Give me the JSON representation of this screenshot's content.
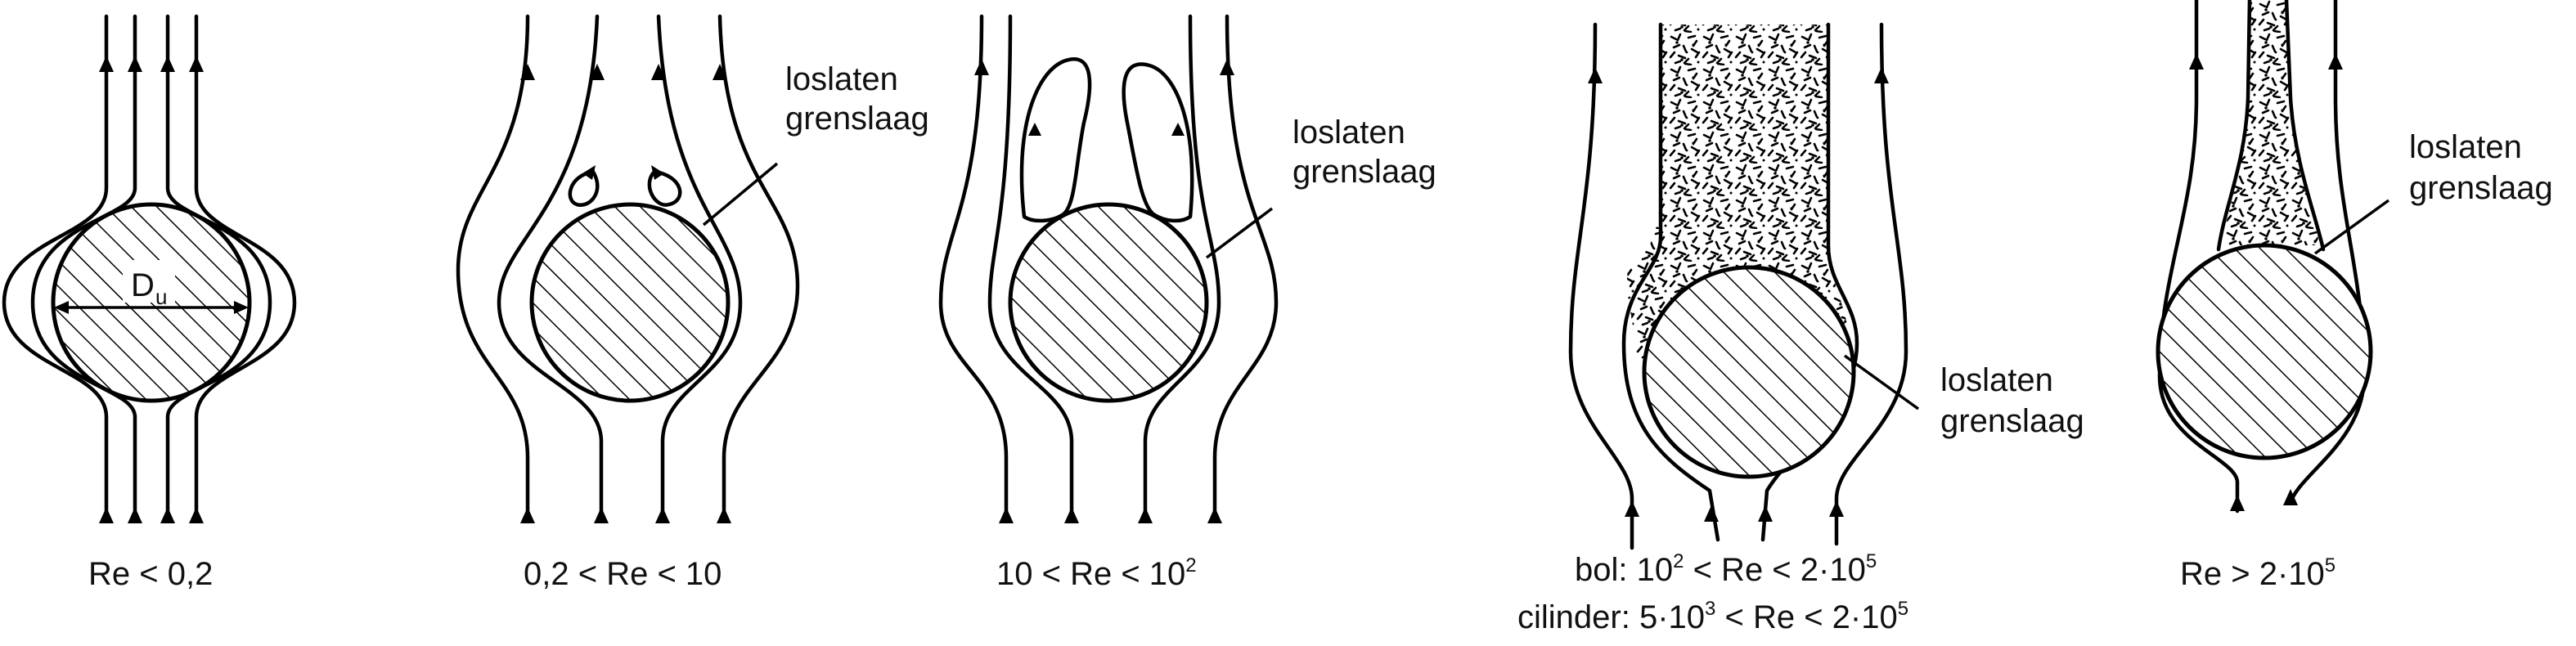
{
  "panels": [
    {
      "id": "panel-1",
      "caption": "Re < 0,2"
    },
    {
      "id": "panel-2",
      "caption": "0,2 < Re < 10",
      "note": [
        "loslaten",
        "grenslaag"
      ]
    },
    {
      "id": "panel-3",
      "caption_main": "10 < Re < 10",
      "caption_sup": "2",
      "note": [
        "loslaten",
        "grenslaag"
      ]
    },
    {
      "id": "panel-4",
      "caption_line1": {
        "a": "bol: 10",
        "sup1": "2",
        "b": " < Re < 2·10",
        "sup2": "5"
      },
      "caption_line2": {
        "a": "cilinder: 5·10",
        "sup1": "3",
        "b": " < Re < 2·10",
        "sup2": "5"
      },
      "note": [
        "loslaten",
        "grenslaag"
      ]
    },
    {
      "id": "panel-5",
      "caption_main": "Re > 2·10",
      "caption_sup": "5",
      "note": [
        "loslaten",
        "grenslaag"
      ]
    }
  ],
  "diameter_label": {
    "main": "D",
    "sub": "u"
  }
}
